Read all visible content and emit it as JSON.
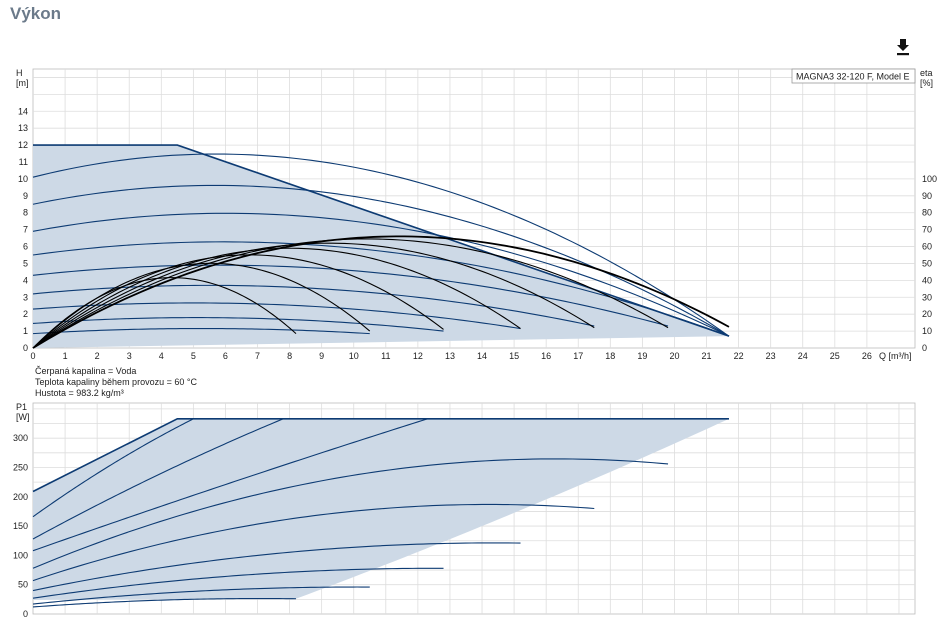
{
  "page": {
    "title": "Výkon"
  },
  "toolbar": {
    "download_icon": "download-icon"
  },
  "fluid_info": {
    "medium": "Čerpaná kapalina = Voda",
    "temperature": "Teplota kapaliny během provozu = 60 °C",
    "density": "Hustota = 983.2 kg/m³"
  },
  "colors": {
    "curve": "#0d3b73",
    "envelope_fill": "#cdd9e6",
    "efficiency": "#000000",
    "grid": "#dddddd",
    "title": "#6b7a8a"
  },
  "chart_data": [
    {
      "type": "line",
      "name": "head-chart",
      "legend_text": "MAGNA3 32-120 F, Model E",
      "legend_position": "top-right",
      "grid": true,
      "x_axis": {
        "label": "Q [m³/h]",
        "range": [
          0,
          27.5
        ],
        "ticks": [
          0,
          1,
          2,
          3,
          4,
          5,
          6,
          7,
          8,
          9,
          10,
          11,
          12,
          13,
          14,
          15,
          16,
          17,
          18,
          19,
          20,
          21,
          22,
          23,
          24,
          25,
          26
        ]
      },
      "y_axis_left": {
        "label_lines": [
          "H",
          "[m]"
        ],
        "range": [
          0,
          16.5
        ],
        "ticks": [
          0,
          1,
          2,
          3,
          4,
          5,
          6,
          7,
          8,
          9,
          10,
          11,
          12,
          13,
          14
        ]
      },
      "y_axis_right": {
        "label_lines": [
          "eta",
          "[%]"
        ],
        "range": [
          0,
          100
        ],
        "ticks": [
          0,
          10,
          20,
          30,
          40,
          50,
          60,
          70,
          80,
          90,
          100
        ]
      },
      "operating_envelope": [
        [
          0,
          12
        ],
        [
          4.5,
          12
        ],
        [
          21.7,
          0.7
        ],
        [
          0,
          0
        ]
      ],
      "speed_curves": [
        {
          "h0": 12.0,
          "peak_q": 3.0,
          "peak_h": 12.0,
          "q_end": 21.7,
          "h_end": 0.7
        },
        {
          "h0": 10.1,
          "peak_q": 5.0,
          "peak_h": 11.45,
          "q_end": 21.7,
          "h_end": 0.7
        },
        {
          "h0": 8.5,
          "peak_q": 7.5,
          "peak_h": 9.5,
          "q_end": 21.7,
          "h_end": 0.7
        },
        {
          "h0": 6.9,
          "peak_q": 8.0,
          "peak_h": 7.85,
          "q_end": 21.7,
          "h_end": 0.7
        },
        {
          "h0": 5.5,
          "peak_q": 7.0,
          "peak_h": 6.25,
          "q_end": 21.7,
          "h_end": 0.7
        },
        {
          "h0": 4.3,
          "peak_q": 6.0,
          "peak_h": 4.9,
          "q_end": 19.8,
          "h_end": 1.3
        },
        {
          "h0": 3.2,
          "peak_q": 5.0,
          "peak_h": 3.7,
          "q_end": 17.5,
          "h_end": 1.3
        },
        {
          "h0": 2.3,
          "peak_q": 4.0,
          "peak_h": 2.65,
          "q_end": 15.2,
          "h_end": 1.15
        },
        {
          "h0": 1.45,
          "peak_q": 3.2,
          "peak_h": 1.75,
          "q_end": 12.8,
          "h_end": 1.0
        },
        {
          "h0": 0.85,
          "peak_q": 2.2,
          "peak_h": 1.05,
          "q_end": 10.5,
          "h_end": 0.85
        }
      ],
      "efficiency_curves": [
        {
          "q_end": 8.2,
          "peak_q": 4.1,
          "peak_eta": 41.5,
          "eta_end": 8.5
        },
        {
          "q_end": 10.5,
          "peak_q": 5.3,
          "peak_eta": 50.0,
          "eta_end": 10.0
        },
        {
          "q_end": 12.8,
          "peak_q": 6.5,
          "peak_eta": 55.0,
          "eta_end": 11.0
        },
        {
          "q_end": 15.2,
          "peak_q": 8.0,
          "peak_eta": 59.0,
          "eta_end": 11.5
        },
        {
          "q_end": 17.5,
          "peak_q": 9.3,
          "peak_eta": 62.0,
          "eta_end": 12.0
        },
        {
          "q_end": 19.8,
          "peak_q": 10.5,
          "peak_eta": 64.5,
          "eta_end": 12.0
        },
        {
          "q_end": 21.7,
          "peak_q": 11.5,
          "peak_eta": 66.0,
          "eta_end": 12.5
        }
      ]
    },
    {
      "type": "line",
      "name": "power-chart",
      "grid": true,
      "x_axis": {
        "range": [
          0,
          27.5
        ]
      },
      "y_axis_left": {
        "label_lines": [
          "P1",
          "[W]"
        ],
        "range": [
          0,
          360
        ],
        "ticks": [
          0,
          50,
          100,
          150,
          200,
          250,
          300
        ]
      },
      "operating_envelope": [
        [
          0,
          209
        ],
        [
          4.5,
          333
        ],
        [
          21.7,
          333
        ],
        [
          8.2,
          26
        ],
        [
          0,
          24
        ]
      ],
      "speed_curves": [
        {
          "p0": 209,
          "q_mid": 2.25,
          "p_mid": 273,
          "q_end": 4.5,
          "p_end": 333
        },
        {
          "p0": 166,
          "q_mid": 2.6,
          "p_mid": 260,
          "q_end": 5.0,
          "p_end": 333
        },
        {
          "p0": 128,
          "q_mid": 4.0,
          "p_mid": 240,
          "q_end": 7.8,
          "p_end": 333
        },
        {
          "p0": 108,
          "q_mid": 6.5,
          "p_mid": 230,
          "q_end": 12.3,
          "p_end": 333
        },
        {
          "p0": 78,
          "q_mid": 13.0,
          "p_mid": 257,
          "q_end": 19.8,
          "p_end": 256
        },
        {
          "p0": 57,
          "q_mid": 10.5,
          "p_mid": 178,
          "q_end": 17.5,
          "p_end": 180
        },
        {
          "p0": 40,
          "q_mid": 9.0,
          "p_mid": 110,
          "q_end": 15.2,
          "p_end": 121
        },
        {
          "p0": 27,
          "q_mid": 7.0,
          "p_mid": 68,
          "q_end": 12.8,
          "p_end": 78
        },
        {
          "p0": 17,
          "q_mid": 5.5,
          "p_mid": 40,
          "q_end": 10.5,
          "p_end": 46
        },
        {
          "p0": 12,
          "q_mid": 4.2,
          "p_mid": 24,
          "q_end": 8.2,
          "p_end": 26
        }
      ]
    }
  ]
}
